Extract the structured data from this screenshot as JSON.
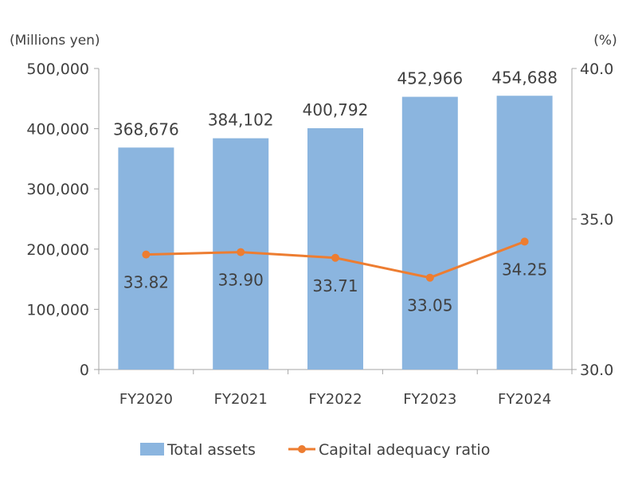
{
  "chart_data": {
    "type": "bar+line",
    "categories": [
      "FY2020",
      "FY2021",
      "FY2022",
      "FY2023",
      "FY2024"
    ],
    "series": [
      {
        "name": "Total assets",
        "type": "bar",
        "axis": "left",
        "values": [
          368676,
          384102,
          400792,
          452966,
          454688
        ],
        "labels": [
          "368,676",
          "384,102",
          "400,792",
          "452,966",
          "454,688"
        ],
        "color": "#8BB5DF"
      },
      {
        "name": "Capital adequacy ratio",
        "type": "line",
        "axis": "right",
        "values": [
          33.82,
          33.9,
          33.71,
          33.05,
          34.25
        ],
        "labels": [
          "33.82",
          "33.90",
          "33.71",
          "33.05",
          "34.25"
        ],
        "color": "#ED7D31"
      }
    ],
    "left_axis": {
      "label": "(Millions yen)",
      "ylim": [
        0,
        500000
      ],
      "ticks": [
        "0",
        "100,000",
        "200,000",
        "300,000",
        "400,000",
        "500,000"
      ]
    },
    "right_axis": {
      "label": "(%)",
      "ylim": [
        30,
        40
      ],
      "ticks": [
        "30.0",
        "35.0",
        "40.0"
      ]
    },
    "grid": false,
    "legend": "bottom"
  }
}
